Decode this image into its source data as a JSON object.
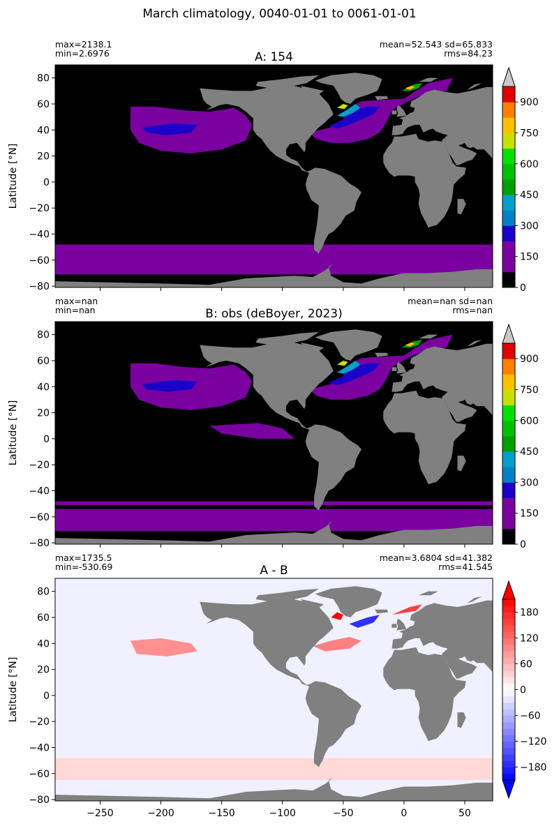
{
  "suptitle": "March climatology, 0040-01-01 to 0061-01-01",
  "ylabel": "Latitude [°N]",
  "chart_data": [
    {
      "type": "heatmap",
      "title": "A: 154",
      "stats_left": [
        "max=2138.1",
        "min=2.6976"
      ],
      "stats_right": [
        "mean=52.543 sd=65.833",
        "rms=84.23"
      ],
      "xlim": [
        -287,
        73
      ],
      "ylim": [
        -81,
        90
      ],
      "yticks": [
        -80,
        -60,
        -40,
        -20,
        0,
        20,
        40,
        60,
        80
      ],
      "xtick_marks": [
        -250,
        -200,
        -150,
        -100,
        -50,
        0,
        50
      ],
      "colorbar": {
        "levels": [
          0,
          75,
          150,
          225,
          300,
          375,
          450,
          525,
          600,
          675,
          750,
          825,
          900,
          975
        ],
        "ticks": [
          0,
          150,
          300,
          450,
          600,
          750,
          900
        ],
        "colors": [
          "#000000",
          "#7a00a0",
          "#7a00a0",
          "#1a00c8",
          "#0080c8",
          "#00a0c8",
          "#00a000",
          "#00c000",
          "#00e000",
          "#c8e000",
          "#ffc000",
          "#ff8000",
          "#e00000",
          "#c80000"
        ],
        "extend": "max",
        "extend_color": "#c8c8c8"
      }
    },
    {
      "type": "heatmap",
      "title": "B: obs (deBoyer, 2023)",
      "stats_left": [
        "max=nan",
        "min=nan"
      ],
      "stats_right": [
        "mean=nan sd=nan",
        "rms=nan"
      ],
      "xlim": [
        -287,
        73
      ],
      "ylim": [
        -81,
        90
      ],
      "yticks": [
        -80,
        -60,
        -40,
        -20,
        0,
        20,
        40,
        60,
        80
      ],
      "xtick_marks": [
        -250,
        -200,
        -150,
        -100,
        -50,
        0,
        50
      ],
      "colorbar": {
        "levels": [
          0,
          75,
          150,
          225,
          300,
          375,
          450,
          525,
          600,
          675,
          750,
          825,
          900,
          975
        ],
        "ticks": [
          0,
          150,
          300,
          450,
          600,
          750,
          900
        ],
        "colors": [
          "#000000",
          "#7a00a0",
          "#7a00a0",
          "#1a00c8",
          "#0080c8",
          "#00a0c8",
          "#00a000",
          "#00c000",
          "#00e000",
          "#c8e000",
          "#ffc000",
          "#ff8000",
          "#e00000",
          "#c80000"
        ],
        "extend": "max",
        "extend_color": "#c8c8c8"
      }
    },
    {
      "type": "heatmap",
      "title": "A - B",
      "stats_left": [
        "max=1735.5",
        "min=-530.69"
      ],
      "stats_right": [
        "mean=3.6804 sd=41.382",
        "rms=41.545"
      ],
      "xlim": [
        -287,
        73
      ],
      "ylim": [
        -81,
        90
      ],
      "yticks": [
        -80,
        -60,
        -40,
        -20,
        0,
        20,
        40,
        60,
        80
      ],
      "xticks": [
        -250,
        -200,
        -150,
        -100,
        -50,
        0,
        50
      ],
      "colorbar": {
        "levels": [
          -210,
          -195,
          -180,
          -165,
          -150,
          -135,
          -120,
          -105,
          -90,
          -75,
          -60,
          -45,
          -30,
          -15,
          0,
          15,
          30,
          45,
          60,
          75,
          90,
          105,
          120,
          135,
          150,
          165,
          180,
          195,
          210
        ],
        "ticks": [
          -180,
          -120,
          -60,
          0,
          60,
          120,
          180
        ],
        "neg_color": "#0000ff",
        "pos_color": "#ff0000",
        "extend": "both"
      }
    }
  ],
  "colors": {
    "land": "#808080",
    "ocean_mld": "#000000",
    "mld_low": "#7a00a0",
    "diff_background": "#f0f0ff"
  }
}
